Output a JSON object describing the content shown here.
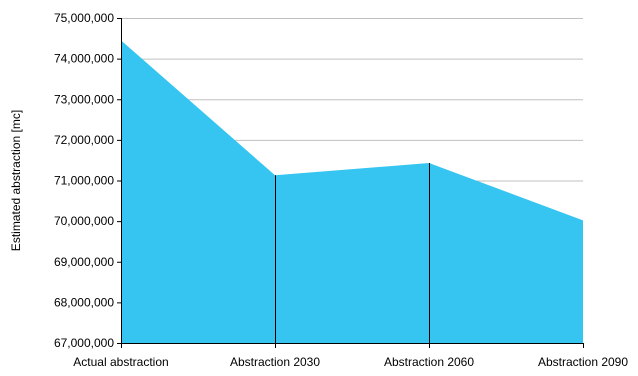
{
  "chart_data": {
    "type": "area",
    "title": "",
    "xlabel": "",
    "ylabel": "Estimated abstraction [mc]",
    "categories": [
      "Actual abstraction",
      "Abstraction 2030",
      "Abstraction 2060",
      "Abstraction 2090"
    ],
    "series": [
      {
        "values": [
          74450000,
          71130000,
          71430000,
          70020000
        ]
      }
    ],
    "ylim": [
      67000000,
      75000000
    ],
    "yticks": [
      {
        "value": 67000000,
        "label": "67,000,000"
      },
      {
        "value": 68000000,
        "label": "68,000,000"
      },
      {
        "value": 69000000,
        "label": "69,000,000"
      },
      {
        "value": 70000000,
        "label": "70,000,000"
      },
      {
        "value": 71000000,
        "label": "71,000,000"
      },
      {
        "value": 72000000,
        "label": "72,000,000"
      },
      {
        "value": 73000000,
        "label": "73,000,000"
      },
      {
        "value": 74000000,
        "label": "74,000,000"
      },
      {
        "value": 75000000,
        "label": "75,000,000"
      }
    ],
    "grid": true,
    "legend": "none",
    "colors": {
      "fill": "#36c5f0",
      "grid": "#c0c0c0",
      "axis": "#000000",
      "text": "#000000"
    }
  }
}
